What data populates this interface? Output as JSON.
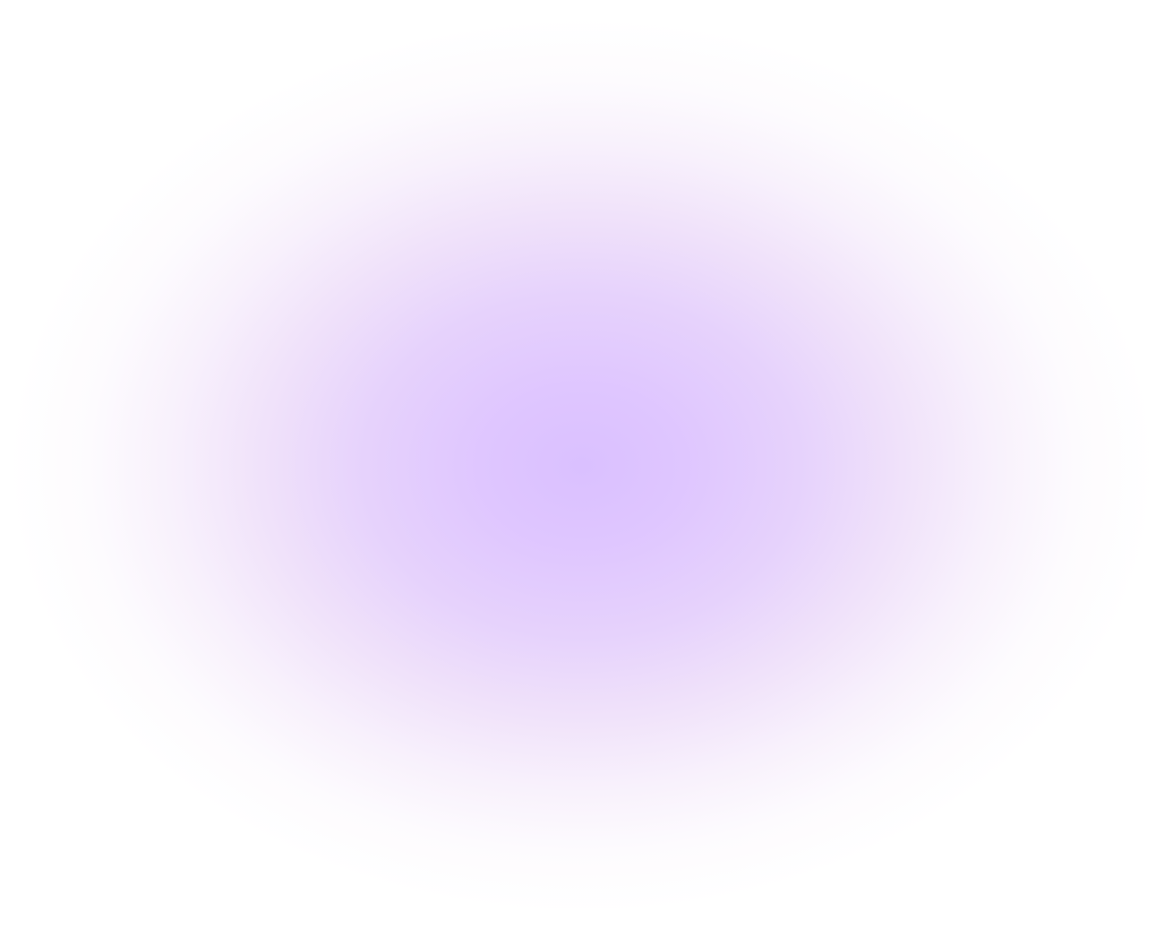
{
  "background": {
    "center_color": "#dac0ff",
    "mid_color": "#f0e2fa",
    "edge_color": "#ffffff",
    "page_color": "#ffffff"
  }
}
